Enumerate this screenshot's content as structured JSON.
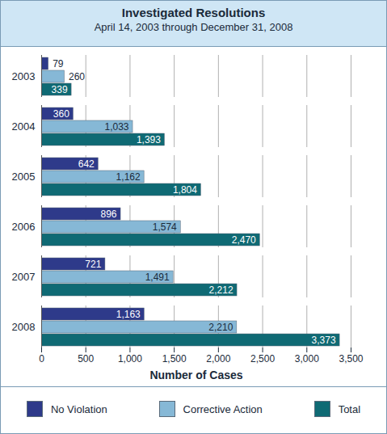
{
  "chart_data": {
    "type": "bar",
    "orientation": "horizontal",
    "title": "Investigated Resolutions",
    "subtitle": "April 14, 2003 through December 31, 2008",
    "x_label": "Number of Cases",
    "categories": [
      "2003",
      "2004",
      "2005",
      "2006",
      "2007",
      "2008"
    ],
    "series": [
      {
        "name": "No Violation",
        "color": "#2e3a8a",
        "values": [
          79,
          360,
          642,
          896,
          721,
          1163
        ],
        "value_labels": [
          "79",
          "360",
          "642",
          "896",
          "721",
          "1,163"
        ]
      },
      {
        "name": "Corrective Action",
        "color": "#86b8d6",
        "values": [
          260,
          1033,
          1162,
          1574,
          1491,
          2210
        ],
        "value_labels": [
          "260",
          "1,033",
          "1,162",
          "1,574",
          "1,491",
          "2,210"
        ]
      },
      {
        "name": "Total",
        "color": "#0f6a74",
        "values": [
          339,
          1393,
          1804,
          2470,
          2212,
          3373
        ],
        "value_labels": [
          "339",
          "1,393",
          "1,804",
          "2,470",
          "2,212",
          "3,373"
        ]
      }
    ],
    "xlim": [
      0,
      3500
    ],
    "xticks": [
      0,
      500,
      {
        "value": 1000,
        "label": "1,000"
      },
      {
        "value": 1500,
        "label": "1,500"
      },
      {
        "value": 2000,
        "label": "2,000"
      },
      {
        "value": 2500,
        "label": "2,500"
      },
      {
        "value": 3000,
        "label": "3,000"
      },
      {
        "value": 3500,
        "label": "3,500"
      }
    ],
    "grid": true,
    "data_labels": true,
    "legend": "bottom"
  }
}
